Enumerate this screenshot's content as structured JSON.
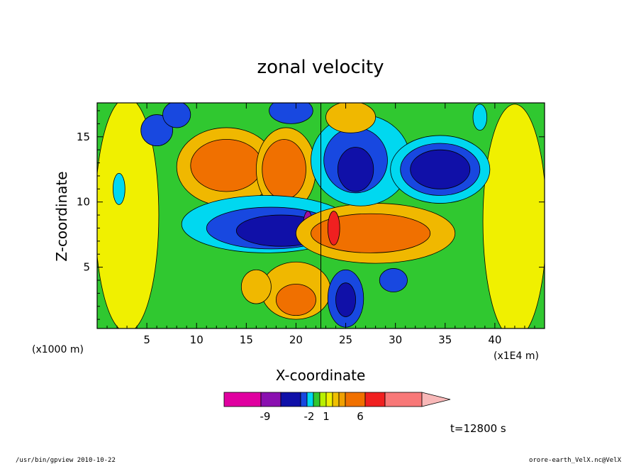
{
  "chart_data": {
    "type": "heatmap",
    "title": "zonal velocity",
    "xlabel": "X-coordinate",
    "ylabel": "Z-coordinate",
    "x_unit_label": "(x1E4 m)",
    "y_unit_label": "(x1000 m)",
    "xlim": [
      0,
      45
    ],
    "ylim": [
      0.3,
      17.6
    ],
    "x_ticks": [
      "5",
      "10",
      "15",
      "20",
      "25",
      "30",
      "35",
      "40"
    ],
    "y_ticks": [
      "5",
      "10",
      "15"
    ],
    "colorbar": {
      "labels": [
        "-9",
        "-2",
        "1",
        "6"
      ],
      "colors": [
        "#e000a0",
        "#8a10b0",
        "#1010a8",
        "#1848e0",
        "#00d8f0",
        "#30c830",
        "#b8f000",
        "#f0f000",
        "#f0c000",
        "#f0a000",
        "#f07000",
        "#f02020",
        "#f87878",
        "#f8b8b8"
      ]
    },
    "regions": [
      {
        "level": "yellow",
        "cx": 3,
        "cy": 9,
        "rx": 3.2,
        "ry": 9
      },
      {
        "level": "yellow",
        "cx": 42,
        "cy": 8.5,
        "rx": 3.2,
        "ry": 9
      },
      {
        "level": "orange-light",
        "cx": 13,
        "cy": 12.7,
        "rx": 5,
        "ry": 3
      },
      {
        "level": "orange",
        "cx": 13,
        "cy": 12.8,
        "rx": 3.6,
        "ry": 2
      },
      {
        "level": "orange-light",
        "cx": 19,
        "cy": 12.5,
        "rx": 3,
        "ry": 3.2
      },
      {
        "level": "orange",
        "cx": 18.8,
        "cy": 12.5,
        "rx": 2.2,
        "ry": 2.3
      },
      {
        "level": "cyan",
        "cx": 17,
        "cy": 8.3,
        "rx": 8.5,
        "ry": 2.2
      },
      {
        "level": "blue",
        "cx": 17.5,
        "cy": 8,
        "rx": 6.5,
        "ry": 1.6
      },
      {
        "level": "navy",
        "cx": 18.5,
        "cy": 7.8,
        "rx": 4.5,
        "ry": 1.2
      },
      {
        "level": "purple",
        "cx": 21.2,
        "cy": 8,
        "rx": 0.5,
        "ry": 1.3
      },
      {
        "level": "orange-light",
        "cx": 28,
        "cy": 7.6,
        "rx": 8,
        "ry": 2.3
      },
      {
        "level": "orange",
        "cx": 27.5,
        "cy": 7.6,
        "rx": 6,
        "ry": 1.5
      },
      {
        "level": "red",
        "cx": 23.8,
        "cy": 8,
        "rx": 0.6,
        "ry": 1.3
      },
      {
        "level": "cyan",
        "cx": 26.5,
        "cy": 13.2,
        "rx": 5,
        "ry": 3.5
      },
      {
        "level": "blue",
        "cx": 26,
        "cy": 13.2,
        "rx": 3.2,
        "ry": 2.5
      },
      {
        "level": "navy",
        "cx": 26,
        "cy": 12.5,
        "rx": 1.8,
        "ry": 1.7
      },
      {
        "level": "cyan",
        "cx": 34.5,
        "cy": 12.5,
        "rx": 5,
        "ry": 2.6
      },
      {
        "level": "blue",
        "cx": 34.5,
        "cy": 12.5,
        "rx": 4,
        "ry": 2
      },
      {
        "level": "navy",
        "cx": 34.5,
        "cy": 12.5,
        "rx": 3,
        "ry": 1.5
      },
      {
        "level": "blue",
        "cx": 6,
        "cy": 15.5,
        "rx": 1.6,
        "ry": 1.2
      },
      {
        "level": "blue",
        "cx": 8,
        "cy": 16.7,
        "rx": 1.4,
        "ry": 1
      },
      {
        "level": "blue",
        "cx": 19.5,
        "cy": 17,
        "rx": 2.2,
        "ry": 1
      },
      {
        "level": "orange-light",
        "cx": 25.5,
        "cy": 16.5,
        "rx": 2.5,
        "ry": 1.2
      },
      {
        "level": "orange-light",
        "cx": 20,
        "cy": 3.2,
        "rx": 3.5,
        "ry": 2.2
      },
      {
        "level": "orange",
        "cx": 20,
        "cy": 2.5,
        "rx": 2,
        "ry": 1.2
      },
      {
        "level": "blue",
        "cx": 25,
        "cy": 2.6,
        "rx": 1.8,
        "ry": 2.2
      },
      {
        "level": "navy",
        "cx": 25,
        "cy": 2.5,
        "rx": 1,
        "ry": 1.3
      },
      {
        "level": "blue",
        "cx": 29.8,
        "cy": 4,
        "rx": 1.4,
        "ry": 0.9
      },
      {
        "level": "cyan",
        "cx": 2.2,
        "cy": 11,
        "rx": 0.6,
        "ry": 1.2
      },
      {
        "level": "cyan",
        "cx": 38.5,
        "cy": 16.5,
        "rx": 0.7,
        "ry": 1
      },
      {
        "level": "orange-light",
        "cx": 16,
        "cy": 3.5,
        "rx": 1.5,
        "ry": 1.3
      }
    ],
    "time_label": "t=12800 s"
  },
  "footer": {
    "left": "/usr/bin/gpview   2010-10-22",
    "right": "orore-earth_VelX.nc@VelX"
  }
}
